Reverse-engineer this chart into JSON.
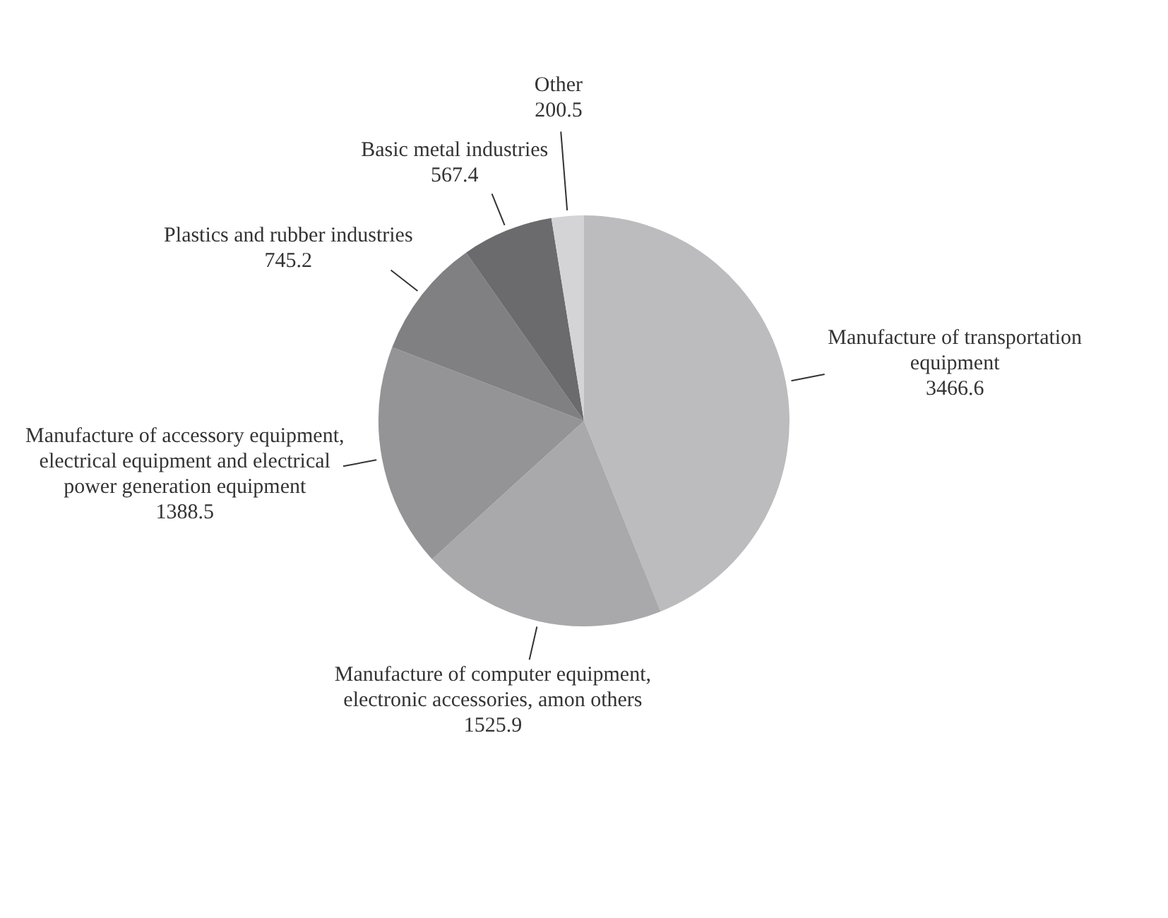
{
  "chart_data": {
    "type": "pie",
    "categories": [
      "Manufacture of transportation equipment",
      "Manufacture of computer equipment, electronic accessories, amon others",
      "Manufacture of accessory equipment, electrical equipment and electrical power generation equipment",
      "Plastics and rubber industries",
      "Basic metal industries",
      "Other"
    ],
    "values": [
      3466.6,
      1525.9,
      1388.5,
      745.2,
      567.4,
      200.5
    ],
    "colors": [
      "#bcbcbe",
      "#a9a9ab",
      "#949496",
      "#808082",
      "#6b6b6d",
      "#d4d4d6"
    ],
    "data_labels": true,
    "legend": false
  }
}
